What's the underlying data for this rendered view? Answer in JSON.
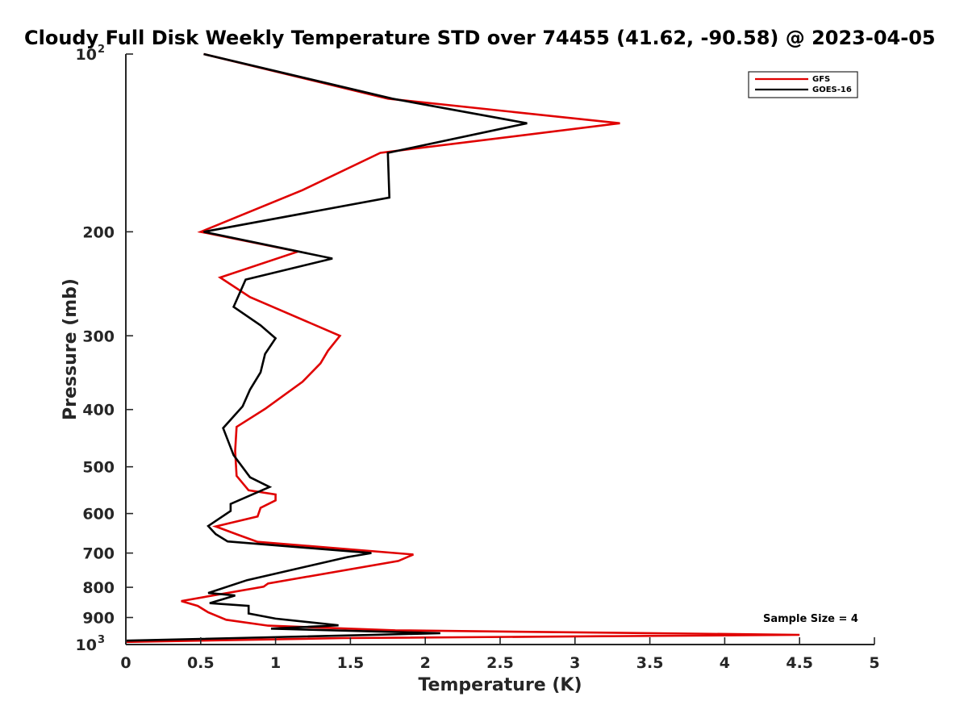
{
  "chart_data": {
    "type": "line",
    "title": "Cloudy Full Disk Weekly Temperature STD over 74455 (41.62, -90.58) @ 2023-04-05",
    "xlabel": "Temperature (K)",
    "ylabel": "Pressure (mb)",
    "xlim": [
      0,
      5
    ],
    "ylim": [
      100,
      1000
    ],
    "yscale": "log",
    "y_reversed": true,
    "grid": false,
    "legend_position": "top-right",
    "x_ticks": [
      "0",
      "0.5",
      "1",
      "1.5",
      "2",
      "2.5",
      "3",
      "3.5",
      "4",
      "4.5",
      "5"
    ],
    "y_ticks": [
      {
        "value": 100,
        "label": "10",
        "sup": "2"
      },
      {
        "value": 200,
        "label": "200"
      },
      {
        "value": 300,
        "label": "300"
      },
      {
        "value": 400,
        "label": "400"
      },
      {
        "value": 500,
        "label": "500"
      },
      {
        "value": 600,
        "label": "600"
      },
      {
        "value": 700,
        "label": "700"
      },
      {
        "value": 800,
        "label": "800"
      },
      {
        "value": 900,
        "label": "900"
      },
      {
        "value": 1000,
        "label": "10",
        "sup": "3"
      }
    ],
    "annotation": "Sample Size = 4",
    "series": [
      {
        "name": "GFS",
        "color": "#e00000",
        "points": [
          [
            0.52,
            100
          ],
          [
            1.75,
            119
          ],
          [
            3.3,
            131
          ],
          [
            1.7,
            147
          ],
          [
            1.18,
            170
          ],
          [
            0.5,
            200
          ],
          [
            1.15,
            216
          ],
          [
            0.63,
            239
          ],
          [
            0.83,
            258
          ],
          [
            1.43,
            300
          ],
          [
            1.35,
            318
          ],
          [
            1.3,
            334
          ],
          [
            1.18,
            359
          ],
          [
            0.93,
            399
          ],
          [
            0.74,
            428
          ],
          [
            0.73,
            470
          ],
          [
            0.74,
            518
          ],
          [
            0.82,
            548
          ],
          [
            1.0,
            557
          ],
          [
            1.0,
            570
          ],
          [
            0.9,
            587
          ],
          [
            0.88,
            607
          ],
          [
            0.6,
            631
          ],
          [
            0.75,
            652
          ],
          [
            0.88,
            670
          ],
          [
            1.92,
            704
          ],
          [
            1.82,
            722
          ],
          [
            0.95,
            788
          ],
          [
            0.92,
            798
          ],
          [
            0.37,
            844
          ],
          [
            0.48,
            860
          ],
          [
            0.55,
            882
          ],
          [
            0.67,
            908
          ],
          [
            0.95,
            929
          ],
          [
            1.8,
            946
          ],
          [
            4.5,
            963
          ],
          [
            1.45,
            975
          ],
          [
            0.0,
            990
          ]
        ]
      },
      {
        "name": "GOES-16",
        "color": "#000000",
        "points": [
          [
            0.52,
            100
          ],
          [
            1.78,
            119
          ],
          [
            2.68,
            131
          ],
          [
            1.75,
            147
          ],
          [
            1.76,
            175
          ],
          [
            0.52,
            200
          ],
          [
            1.38,
            222
          ],
          [
            0.8,
            241
          ],
          [
            0.72,
            268
          ],
          [
            0.9,
            288
          ],
          [
            1.0,
            303
          ],
          [
            0.93,
            322
          ],
          [
            0.9,
            346
          ],
          [
            0.83,
            370
          ],
          [
            0.78,
            395
          ],
          [
            0.65,
            430
          ],
          [
            0.72,
            478
          ],
          [
            0.83,
            521
          ],
          [
            0.96,
            541
          ],
          [
            0.7,
            578
          ],
          [
            0.7,
            594
          ],
          [
            0.55,
            630
          ],
          [
            0.6,
            650
          ],
          [
            0.68,
            669
          ],
          [
            1.64,
            700
          ],
          [
            1.48,
            711
          ],
          [
            0.81,
            778
          ],
          [
            0.55,
            818
          ],
          [
            0.73,
            826
          ],
          [
            0.56,
            851
          ],
          [
            0.82,
            860
          ],
          [
            0.82,
            886
          ],
          [
            1.0,
            904
          ],
          [
            1.42,
            928
          ],
          [
            0.97,
            940
          ],
          [
            2.1,
            957
          ],
          [
            0.0,
            985
          ]
        ]
      }
    ]
  }
}
